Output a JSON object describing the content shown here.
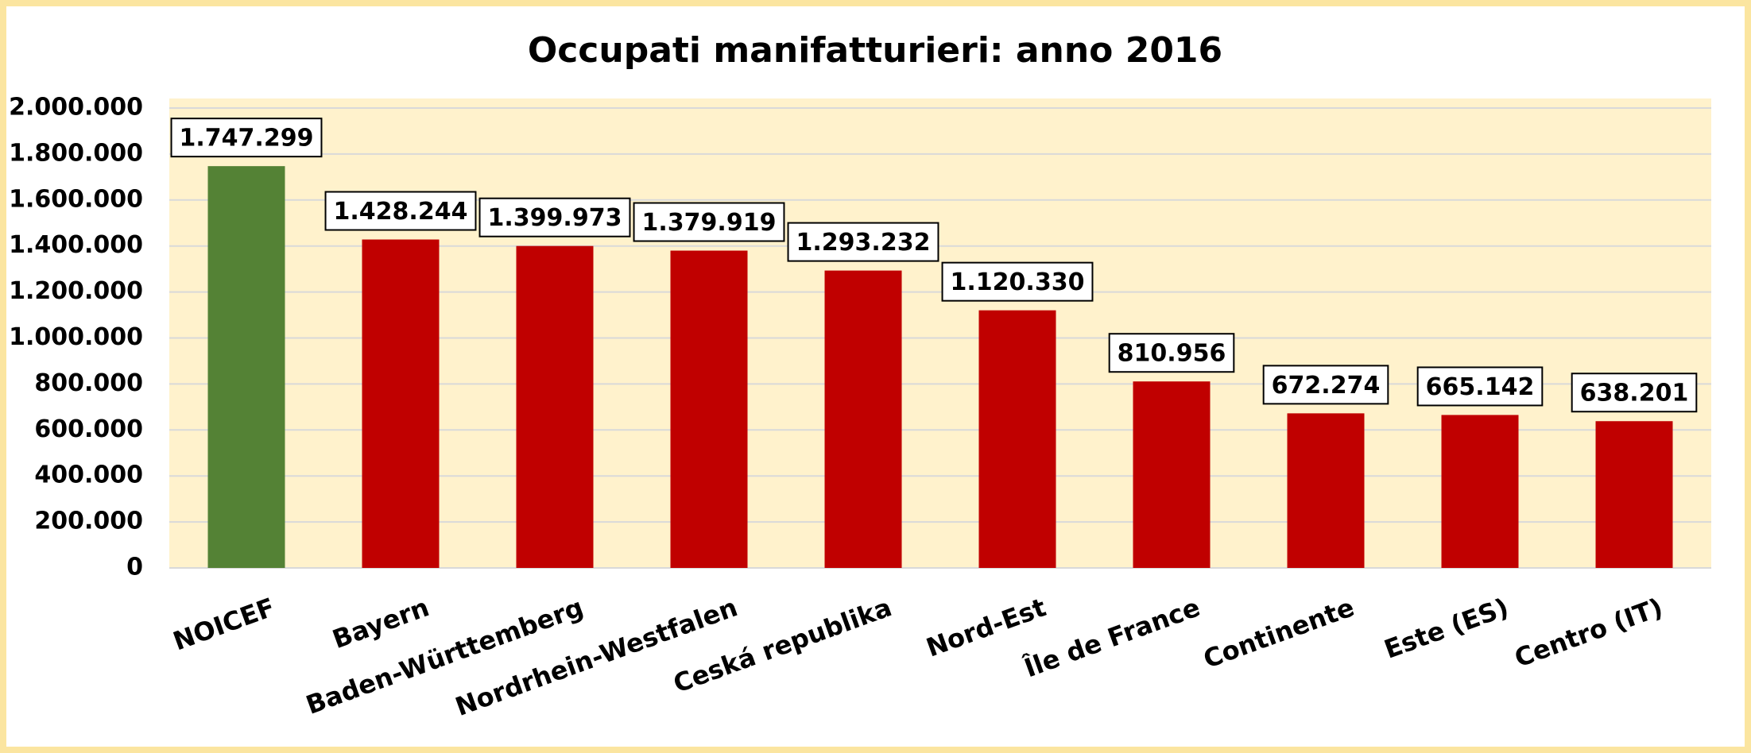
{
  "chart_data": {
    "type": "bar",
    "title": "Occupati manifatturieri: anno 2016",
    "categories": [
      "NOICEF",
      "Bayern",
      "Baden-Württemberg",
      "Nordrhein-Westfalen",
      "Ceská republika",
      "Nord-Est",
      "Île de France",
      "Continente",
      "Este (ES)",
      "Centro (IT)"
    ],
    "values": [
      1747299,
      1428244,
      1399973,
      1379919,
      1293232,
      1120330,
      810956,
      672274,
      665142,
      638201
    ],
    "value_labels": [
      "1.747.299",
      "1.428.244",
      "1.399.973",
      "1.379.919",
      "1.293.232",
      "1.120.330",
      "810.956",
      "672.274",
      "665.142",
      "638.201"
    ],
    "colors": [
      "#548235",
      "#c00000",
      "#c00000",
      "#c00000",
      "#c00000",
      "#c00000",
      "#c00000",
      "#c00000",
      "#c00000",
      "#c00000"
    ],
    "ylim": [
      0,
      2000000
    ],
    "yticks": [
      0,
      {
        "value": 200000,
        "label": "200.000"
      },
      {
        "value": 400000,
        "label": "400.000"
      },
      {
        "value": 600000,
        "label": "600.000"
      },
      {
        "value": 800000,
        "label": "800.000"
      },
      {
        "value": 1000000,
        "label": "1.000.000"
      },
      {
        "value": 1200000,
        "label": "1.200.000"
      },
      {
        "value": 1400000,
        "label": "1.400.000"
      },
      {
        "value": 1600000,
        "label": "1.600.000"
      },
      {
        "value": 1800000,
        "label": "1.800.000"
      },
      {
        "value": 2000000,
        "label": "2.000.000"
      }
    ],
    "grid": true
  }
}
